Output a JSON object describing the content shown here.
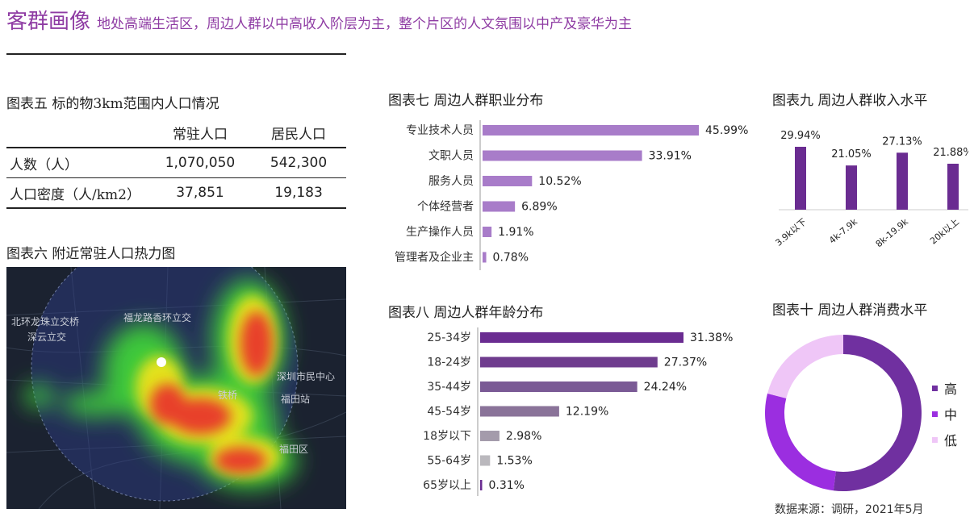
{
  "header": {
    "title": "客群画像",
    "subtitle": "地处高端生活区，周边人群以中高收入阶层为主，整个片区的人文氛围以中产及豪华为主"
  },
  "table5": {
    "title": "图表五 标的物3km范围内人口情况",
    "columns": [
      "",
      "常驻人口",
      "居民人口"
    ],
    "rows": [
      {
        "label": "人数（人）",
        "v1": "1,070,050",
        "v2": "542,300"
      },
      {
        "label": "人口密度（人/km2）",
        "v1": "37,851",
        "v2": "19,183"
      }
    ]
  },
  "heatmap": {
    "title": "图表六 附近常驻人口热力图",
    "labels": [
      "北环龙珠立交桥",
      "深云立交",
      "福龙路香环立交",
      "深圳市民中心",
      "福田站",
      "福田区",
      "铁桥"
    ]
  },
  "colors": {
    "accent": "#8e3ba3",
    "bar_dark": "#6a2c91",
    "bar_mid": "#8a55b5",
    "bar_light": "#a87cc9",
    "donut_high": "#7030a0",
    "donut_mid": "#9b2ee0",
    "donut_low": "#efc6f7"
  },
  "chart_data": [
    {
      "type": "bar",
      "orientation": "horizontal",
      "title": "图表七 周边人群职业分布",
      "categories": [
        "专业技术人员",
        "文职人员",
        "服务人员",
        "个体经营者",
        "生产操作人员",
        "管理者及企业主"
      ],
      "values": [
        45.99,
        33.91,
        10.52,
        6.89,
        1.91,
        0.78
      ],
      "labels": [
        "45.99%",
        "33.91%",
        "10.52%",
        "6.89%",
        "1.91%",
        "0.78%"
      ]
    },
    {
      "type": "bar",
      "orientation": "horizontal",
      "title": "图表八 周边人群年龄分布",
      "categories": [
        "25-34岁",
        "18-24岁",
        "35-44岁",
        "45-54岁",
        "18岁以下",
        "55-64岁",
        "65岁以上"
      ],
      "values": [
        31.38,
        27.37,
        24.24,
        12.19,
        2.98,
        1.53,
        0.31
      ],
      "labels": [
        "31.38%",
        "27.37%",
        "24.24%",
        "12.19%",
        "2.98%",
        "1.53%",
        "0.31%"
      ]
    },
    {
      "type": "bar",
      "orientation": "vertical",
      "title": "图表九 周边人群收入水平",
      "categories": [
        "3.9k以下",
        "4k-7.9k",
        "8k-19.9k",
        "20k以上"
      ],
      "values": [
        29.94,
        21.05,
        27.13,
        21.88
      ],
      "labels": [
        "29.94%",
        "21.05%",
        "27.13%",
        "21.88%"
      ]
    },
    {
      "type": "pie",
      "title": "图表十 周边人群消费水平",
      "categories": [
        "高",
        "中",
        "低"
      ],
      "values": [
        52,
        27,
        21
      ]
    }
  ],
  "footer": {
    "source": "数据来源：调研，2021年5月"
  }
}
